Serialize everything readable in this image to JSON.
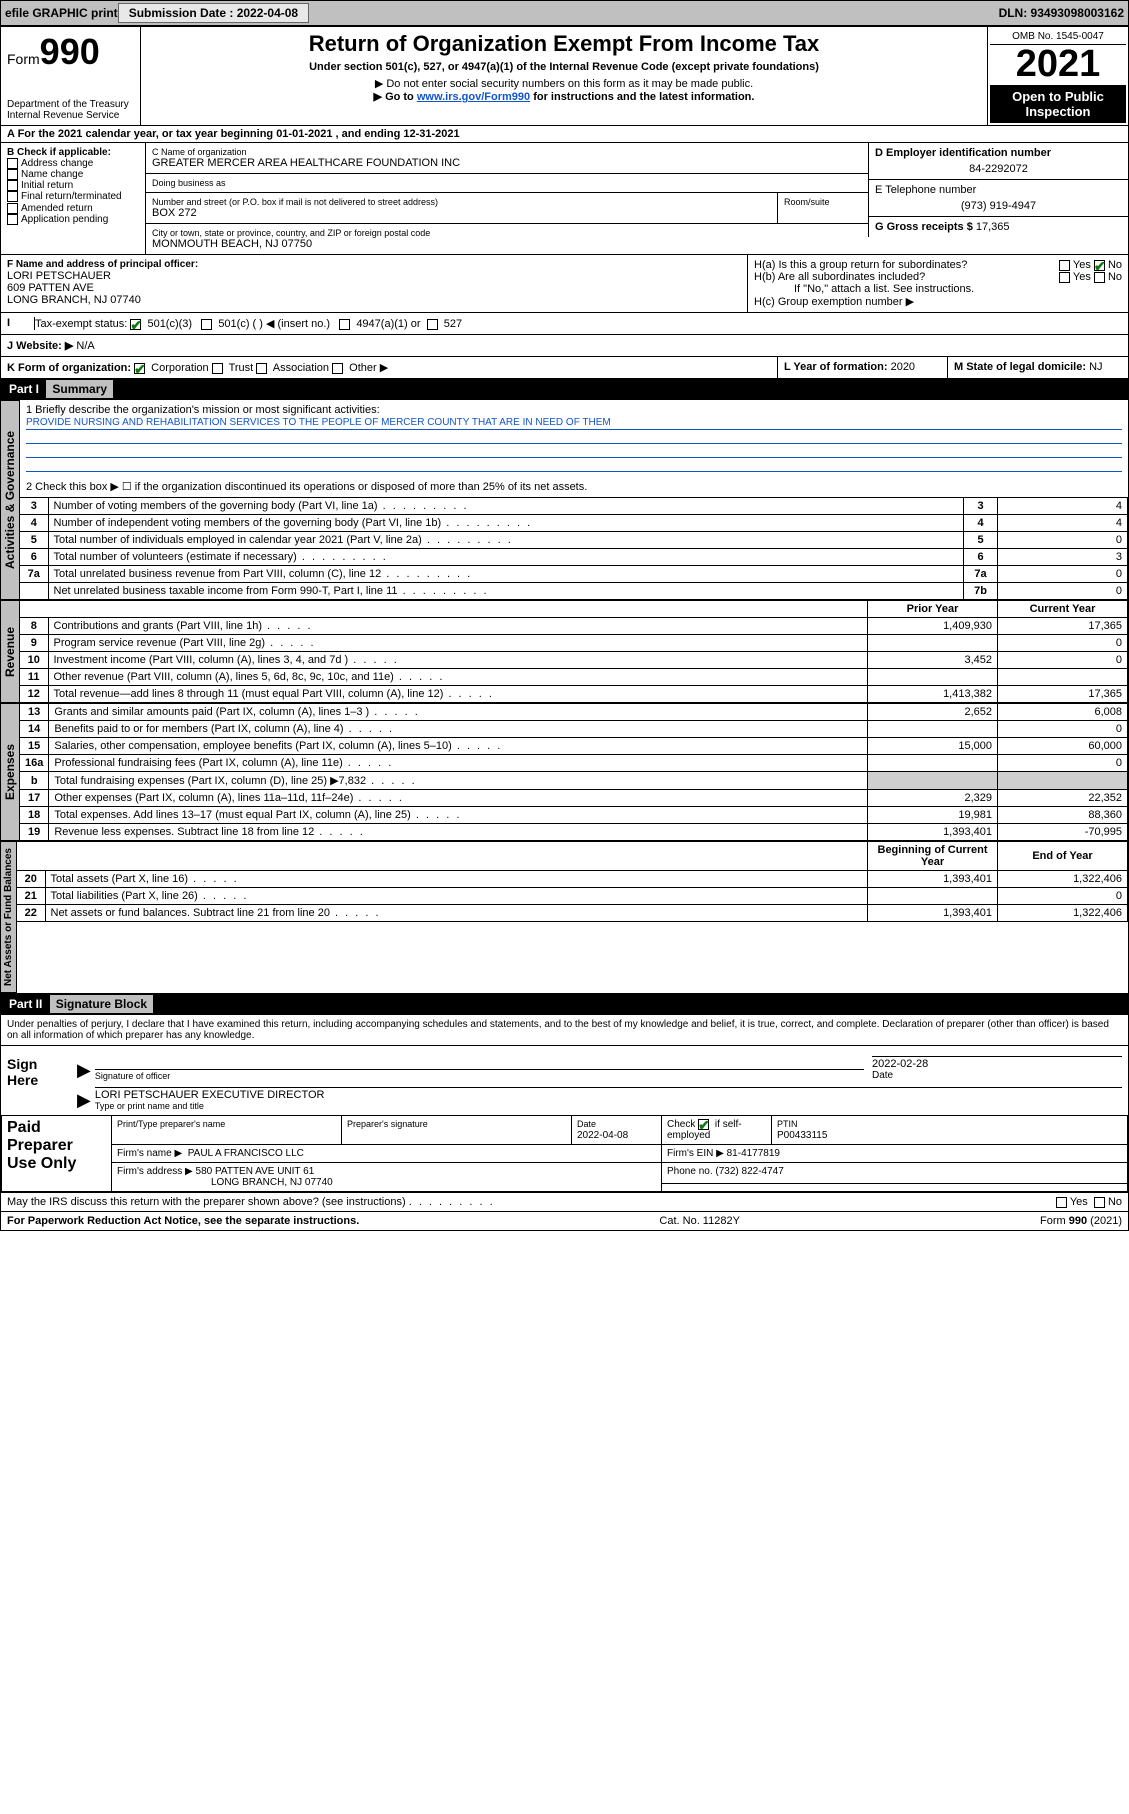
{
  "topbar": {
    "efile": "efile GRAPHIC print",
    "submission_label": "Submission Date : 2022-04-08",
    "dln_label": "DLN: 93493098003162"
  },
  "header": {
    "form_prefix": "Form",
    "form_num": "990",
    "dept": "Department of the Treasury",
    "irs": "Internal Revenue Service",
    "title": "Return of Organization Exempt From Income Tax",
    "sub": "Under section 501(c), 527, or 4947(a)(1) of the Internal Revenue Code (except private foundations)",
    "note1": "▶ Do not enter social security numbers on this form as it may be made public.",
    "note2_pre": "▶ Go to ",
    "note2_link": "www.irs.gov/Form990",
    "note2_post": " for instructions and the latest information.",
    "omb": "OMB No. 1545-0047",
    "year": "2021",
    "open_pub": "Open to Public Inspection"
  },
  "ty_row": "A For the 2021 calendar year, or tax year beginning 01-01-2021   , and ending 12-31-2021",
  "section_b": {
    "heading": "B Check if applicable:",
    "items": [
      "Address change",
      "Name change",
      "Initial return",
      "Final return/terminated",
      "Amended return",
      "Application pending"
    ]
  },
  "section_c": {
    "name_lbl": "C Name of organization",
    "name": "GREATER MERCER AREA HEALTHCARE FOUNDATION INC",
    "dba_lbl": "Doing business as",
    "dba": "",
    "street_lbl": "Number and street (or P.O. box if mail is not delivered to street address)",
    "room_lbl": "Room/suite",
    "street": "BOX 272",
    "city_lbl": "City or town, state or province, country, and ZIP or foreign postal code",
    "city": "MONMOUTH BEACH, NJ  07750"
  },
  "section_d": {
    "ein_lbl": "D Employer identification number",
    "ein": "84-2292072",
    "tel_lbl": "E Telephone number",
    "tel": "(973) 919-4947",
    "gross_lbl": "G Gross receipts $",
    "gross": "17,365"
  },
  "section_f": {
    "lbl": "F Name and address of principal officer:",
    "name": "LORI PETSCHAUER",
    "addr1": "609 PATTEN AVE",
    "addr2": "LONG BRANCH, NJ  07740"
  },
  "section_h": {
    "ha": "H(a)  Is this a group return for subordinates?",
    "hb": "H(b)  Are all subordinates included?",
    "hb_note": "If \"No,\" attach a list. See instructions.",
    "hc": "H(c)  Group exemption number ▶",
    "yes": "Yes",
    "no": "No"
  },
  "section_i": {
    "lbl": "Tax-exempt status:",
    "opt1": "501(c)(3)",
    "opt2": "501(c) (  ) ◀ (insert no.)",
    "opt3": "4947(a)(1) or",
    "opt4": "527"
  },
  "section_j": {
    "lbl": "J Website: ▶",
    "val": "N/A"
  },
  "section_k": {
    "lbl": "K Form of organization:",
    "opts": [
      "Corporation",
      "Trust",
      "Association",
      "Other ▶"
    ]
  },
  "section_l": {
    "lbl": "L Year of formation:",
    "val": "2020"
  },
  "section_m": {
    "lbl": "M State of legal domicile:",
    "val": "NJ"
  },
  "part1": {
    "hdr": "Part I",
    "title": "Summary",
    "line1_lbl": "1  Briefly describe the organization's mission or most significant activities:",
    "mission": "PROVIDE NURSING AND REHABILITATION SERVICES TO THE PEOPLE OF MERCER COUNTY THAT ARE IN NEED OF THEM",
    "line2": "2  Check this box ▶ ☐  if the organization discontinued its operations or disposed of more than 25% of its net assets."
  },
  "gov_rows": [
    {
      "n": "3",
      "desc": "Number of voting members of the governing body (Part VI, line 1a)",
      "box": "3",
      "amt": "4"
    },
    {
      "n": "4",
      "desc": "Number of independent voting members of the governing body (Part VI, line 1b)",
      "box": "4",
      "amt": "4"
    },
    {
      "n": "5",
      "desc": "Total number of individuals employed in calendar year 2021 (Part V, line 2a)",
      "box": "5",
      "amt": "0"
    },
    {
      "n": "6",
      "desc": "Total number of volunteers (estimate if necessary)",
      "box": "6",
      "amt": "3"
    },
    {
      "n": "7a",
      "desc": "Total unrelated business revenue from Part VIII, column (C), line 12",
      "box": "7a",
      "amt": "0"
    },
    {
      "n": "",
      "desc": "Net unrelated business taxable income from Form 990-T, Part I, line 11",
      "box": "7b",
      "amt": "0"
    }
  ],
  "col_hdrs": {
    "prior": "Prior Year",
    "current": "Current Year",
    "beg": "Beginning of Current Year",
    "end": "End of Year"
  },
  "rev_rows": [
    {
      "n": "8",
      "desc": "Contributions and grants (Part VIII, line 1h)",
      "p": "1,409,930",
      "c": "17,365"
    },
    {
      "n": "9",
      "desc": "Program service revenue (Part VIII, line 2g)",
      "p": "",
      "c": "0"
    },
    {
      "n": "10",
      "desc": "Investment income (Part VIII, column (A), lines 3, 4, and 7d )",
      "p": "3,452",
      "c": "0"
    },
    {
      "n": "11",
      "desc": "Other revenue (Part VIII, column (A), lines 5, 6d, 8c, 9c, 10c, and 11e)",
      "p": "",
      "c": ""
    },
    {
      "n": "12",
      "desc": "Total revenue—add lines 8 through 11 (must equal Part VIII, column (A), line 12)",
      "p": "1,413,382",
      "c": "17,365"
    }
  ],
  "exp_rows": [
    {
      "n": "13",
      "desc": "Grants and similar amounts paid (Part IX, column (A), lines 1–3 )",
      "p": "2,652",
      "c": "6,008"
    },
    {
      "n": "14",
      "desc": "Benefits paid to or for members (Part IX, column (A), line 4)",
      "p": "",
      "c": "0"
    },
    {
      "n": "15",
      "desc": "Salaries, other compensation, employee benefits (Part IX, column (A), lines 5–10)",
      "p": "15,000",
      "c": "60,000"
    },
    {
      "n": "16a",
      "desc": "Professional fundraising fees (Part IX, column (A), line 11e)",
      "p": "",
      "c": "0"
    },
    {
      "n": "b",
      "desc": "Total fundraising expenses (Part IX, column (D), line 25) ▶7,832",
      "p": "shade",
      "c": "shade"
    },
    {
      "n": "17",
      "desc": "Other expenses (Part IX, column (A), lines 11a–11d, 11f–24e)",
      "p": "2,329",
      "c": "22,352"
    },
    {
      "n": "18",
      "desc": "Total expenses. Add lines 13–17 (must equal Part IX, column (A), line 25)",
      "p": "19,981",
      "c": "88,360"
    },
    {
      "n": "19",
      "desc": "Revenue less expenses. Subtract line 18 from line 12",
      "p": "1,393,401",
      "c": "-70,995"
    }
  ],
  "na_rows": [
    {
      "n": "20",
      "desc": "Total assets (Part X, line 16)",
      "p": "1,393,401",
      "c": "1,322,406"
    },
    {
      "n": "21",
      "desc": "Total liabilities (Part X, line 26)",
      "p": "",
      "c": "0"
    },
    {
      "n": "22",
      "desc": "Net assets or fund balances. Subtract line 21 from line 20",
      "p": "1,393,401",
      "c": "1,322,406"
    }
  ],
  "part2": {
    "hdr": "Part II",
    "title": "Signature Block",
    "decl": "Under penalties of perjury, I declare that I have examined this return, including accompanying schedules and statements, and to the best of my knowledge and belief, it is true, correct, and complete. Declaration of preparer (other than officer) is based on all information of which preparer has any knowledge."
  },
  "sign": {
    "here": "Sign Here",
    "sig_of_officer": "Signature of officer",
    "date": "Date",
    "date_val": "2022-02-28",
    "name_title": "LORI PETSCHAUER  EXECUTIVE DIRECTOR",
    "name_title_lbl": "Type or print name and title"
  },
  "preparer": {
    "left": "Paid Preparer Use Only",
    "col1": "Print/Type preparer's name",
    "col2": "Preparer's signature",
    "col3_lbl": "Date",
    "col3_val": "2022-04-08",
    "col4_lbl": "Check",
    "col4_txt": "if self-employed",
    "col5_lbl": "PTIN",
    "col5_val": "P00433115",
    "firm_name_lbl": "Firm's name    ▶",
    "firm_name": "PAUL A FRANCISCO LLC",
    "firm_ein_lbl": "Firm's EIN ▶",
    "firm_ein": "81-4177819",
    "firm_addr_lbl": "Firm's address ▶",
    "firm_addr1": "580 PATTEN AVE UNIT 61",
    "firm_addr2": "LONG BRANCH, NJ  07740",
    "phone_lbl": "Phone no.",
    "phone": "(732) 822-4747"
  },
  "discuss": {
    "q": "May the IRS discuss this return with the preparer shown above? (see instructions)",
    "yes": "Yes",
    "no": "No"
  },
  "footer": {
    "left": "For Paperwork Reduction Act Notice, see the separate instructions.",
    "mid": "Cat. No. 11282Y",
    "right": "Form 990 (2021)"
  },
  "side": {
    "gov": "Activities & Governance",
    "rev": "Revenue",
    "exp": "Expenses",
    "na": "Net Assets or Fund Balances"
  }
}
